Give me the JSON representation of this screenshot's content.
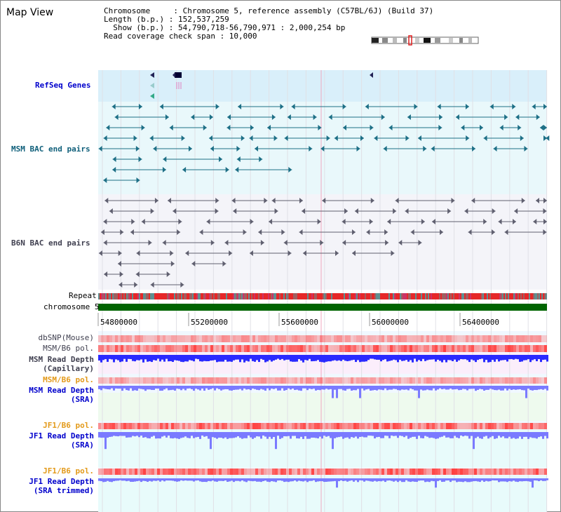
{
  "app": {
    "title": "Map View"
  },
  "header": {
    "chromosome_line": "Chromosome     : Chromosome 5, reference assembly (C57BL/6J) (Build 37)",
    "length_line": "Length (b.p.) : 152,537,259",
    "show_line": "Show (b.p.) : 54,790,718-56,790,971 : 2,000,254 bp",
    "coverage_line": "Read coverage check span : 10,000"
  },
  "tracks": {
    "refseq": "RefSeq Genes",
    "msm_bac": "MSM BAC end pairs",
    "b6n_bac": "B6N BAC end pairs",
    "repeat": "Repeat",
    "chromosome": "chromosome 5",
    "dbsnp": "dbSNP(Mouse)",
    "msm_b6_pol_1": "MSM/B6 pol.",
    "msm_depth_cap_1": "MSM Read Depth",
    "msm_depth_cap_2": "(Capillary)",
    "msm_b6_pol_2": "MSM/B6 pol.",
    "msm_depth_sra_1": "MSM Read Depth",
    "msm_depth_sra_2": "(SRA)",
    "jf1_b6_pol_1": "JF1/B6 pol.",
    "jf1_depth_sra_1": "JF1 Read Depth",
    "jf1_depth_sra_2": "(SRA)",
    "jf1_b6_pol_2": "JF1/B6 pol.",
    "jf1_depth_trim_1": "JF1 Read Depth",
    "jf1_depth_trim_2": "(SRA trimmed)"
  },
  "axis": {
    "ticks": [
      "54800000",
      "55200000",
      "55600000",
      "56000000",
      "56400000"
    ]
  },
  "colors": {
    "refseq_bg": "#d9effa",
    "bac_bg": "#e9f8fb",
    "b6n_bg": "#f4f4f9",
    "chromosome_bar": "#006400",
    "depth_blue": "#2a2aff",
    "depth_light": "#7a7aff",
    "pol_red": "#ff4040"
  }
}
